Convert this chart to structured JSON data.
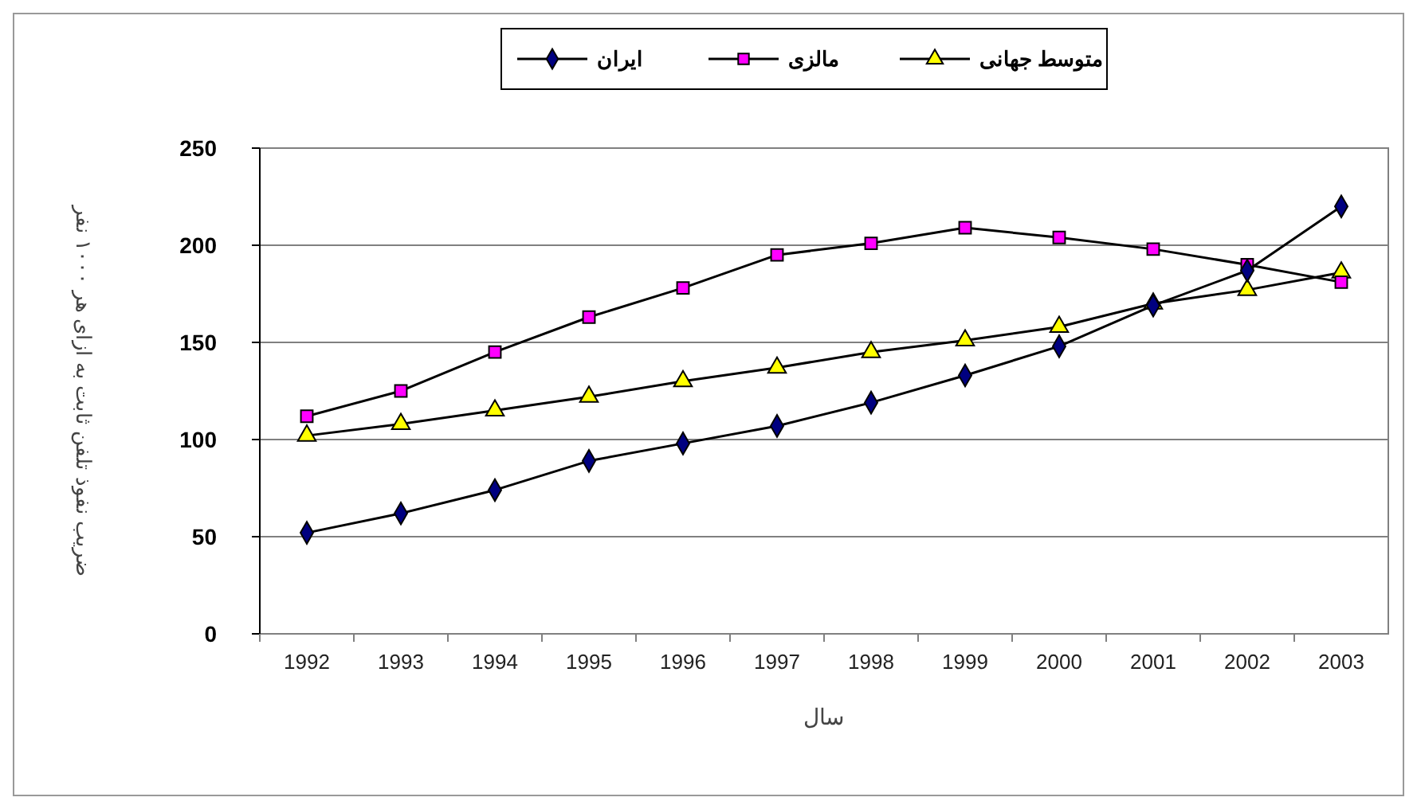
{
  "chart_data": {
    "type": "line",
    "xlabel": "سال",
    "ylabel": "ضریب نفوذ تلفن ثابت به ازای هر ۱۰۰۰ نفر",
    "categories": [
      "1992",
      "1993",
      "1994",
      "1995",
      "1996",
      "1997",
      "1998",
      "1999",
      "2000",
      "2001",
      "2002",
      "2003"
    ],
    "series": [
      {
        "name": "ایران",
        "color": "#000080",
        "marker": "diamond",
        "values": [
          52,
          62,
          74,
          89,
          98,
          107,
          119,
          133,
          148,
          169,
          187,
          220
        ]
      },
      {
        "name": "مالزی",
        "color": "#ff00ff",
        "marker": "square",
        "values": [
          112,
          125,
          145,
          163,
          178,
          195,
          201,
          209,
          204,
          198,
          190,
          181
        ]
      },
      {
        "name": "متوسط جهانی",
        "color": "#ffff00",
        "marker": "triangle",
        "values": [
          102,
          108,
          115,
          122,
          130,
          137,
          145,
          151,
          158,
          170,
          177,
          186
        ]
      }
    ],
    "ylim": [
      0,
      250
    ],
    "yticks": [
      0,
      50,
      100,
      150,
      200,
      250
    ],
    "grid": "y",
    "legend": "top",
    "line_style": "solid"
  }
}
